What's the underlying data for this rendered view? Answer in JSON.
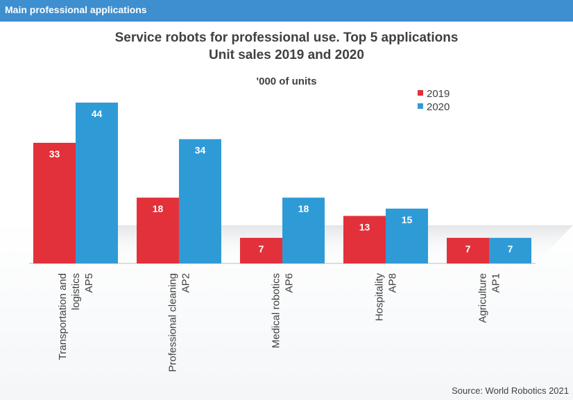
{
  "header": {
    "title": "Main professional applications"
  },
  "source": "Source: World Robotics 2021",
  "chart_data": {
    "type": "bar",
    "title": "Service robots for professional use. Top 5 applications",
    "subtitle": "Unit sales 2019 and 2020",
    "units": "'000 of units",
    "categories": [
      [
        "Transportation and",
        "logistics",
        "AP5"
      ],
      [
        "Professional cleaning",
        "AP2"
      ],
      [
        "Medical robotics",
        "AP6"
      ],
      [
        "Hospitality",
        "AP8"
      ],
      [
        "Agriculture",
        "AP1"
      ]
    ],
    "series": [
      {
        "name": "2019",
        "color": "#e2313a",
        "values": [
          33,
          18,
          7,
          13,
          7
        ]
      },
      {
        "name": "2020",
        "color": "#2f9bd6",
        "values": [
          44,
          34,
          18,
          15,
          7
        ]
      }
    ],
    "ylim": [
      0,
      44
    ],
    "grid": false,
    "legend_position": "top-right"
  }
}
